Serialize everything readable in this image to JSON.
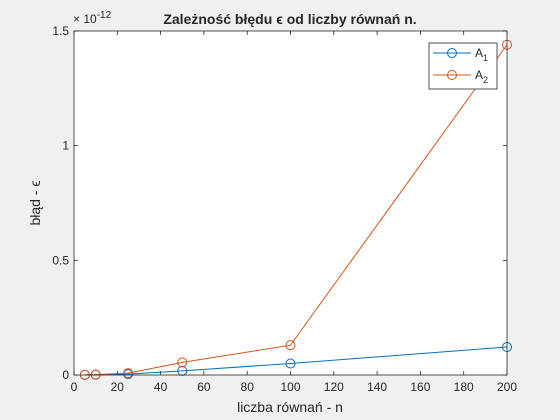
{
  "chart_data": {
    "type": "line",
    "title": "Zależność błędu ϵ od liczby równań n.",
    "xlabel": "liczba równań - n",
    "ylabel": "błąd - ϵ",
    "y_exponent_base": "× 10",
    "y_exponent_power": "-12",
    "xlim": [
      0,
      200
    ],
    "ylim": [
      0,
      1.5
    ],
    "x_ticks": [
      "0",
      "20",
      "40",
      "60",
      "80",
      "100",
      "120",
      "140",
      "160",
      "180",
      "200"
    ],
    "y_ticks": [
      "0",
      "0.5",
      "1",
      "1.5"
    ],
    "grid": false,
    "legend_position": "top-right",
    "series": [
      {
        "name": "A",
        "subscript": "1",
        "color": "#0072BD",
        "x": [
          5,
          10,
          25,
          50,
          100,
          200
        ],
        "y": [
          0.0004,
          0.001,
          0.004,
          0.018,
          0.05,
          0.122
        ]
      },
      {
        "name": "A",
        "subscript": "2",
        "color": "#D95319",
        "x": [
          5,
          10,
          25,
          50,
          100,
          200
        ],
        "y": [
          0.0005,
          0.0015,
          0.008,
          0.055,
          0.13,
          1.44
        ]
      }
    ]
  }
}
